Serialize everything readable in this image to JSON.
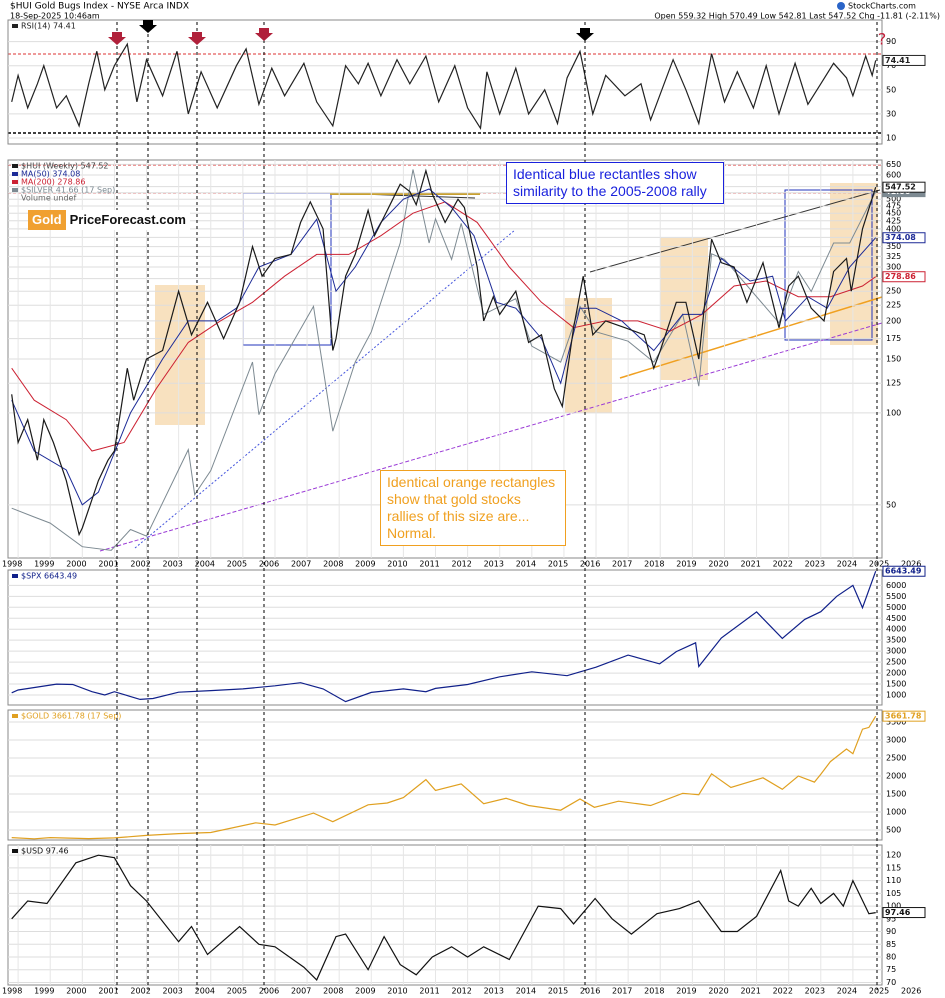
{
  "header": {
    "title": "$HUI Gold Bugs Index - NYSE Arca INDX",
    "date": "18-Sep-2025 10:46am",
    "source": "StockCharts.com",
    "quote": "Open 559.32 High 570.49 Low 542.81 Last 547.52 Chg -11.81 (-2.11%)"
  },
  "logo": {
    "left": "Gold",
    "right": "PriceForecast.com"
  },
  "chart_data": [
    {
      "type": "line",
      "annotations": [
        "?"
      ],
      "xlim": [
        1998,
        2026
      ],
      "ylim": [
        5,
        108
      ],
      "yticks": [
        10,
        30,
        50,
        70,
        90
      ],
      "grid": true,
      "series": [
        {
          "name": "RSI(14) 74.41",
          "color": "#222222",
          "x": [
            1998.8,
            1999.0,
            1999.3,
            1999.6,
            1999.8,
            2000.2,
            2000.5,
            2000.9,
            2001.2,
            2001.45,
            2001.7,
            2002.0,
            2002.4,
            2002.7,
            2003.0,
            2003.5,
            2003.95,
            2004.3,
            2004.7,
            2005.2,
            2005.8,
            2006.1,
            2006.5,
            2006.9,
            2007.3,
            2007.9,
            2008.3,
            2008.8,
            2009.2,
            2009.6,
            2009.9,
            2010.3,
            2010.8,
            2011.2,
            2011.7,
            2012.1,
            2012.6,
            2013.0,
            2013.4,
            2013.6,
            2014.0,
            2014.5,
            2014.9,
            2015.4,
            2015.8,
            2016.1,
            2016.5,
            2016.9,
            2017.3,
            2017.9,
            2018.4,
            2018.7,
            2019.4,
            2019.8,
            2020.2,
            2020.6,
            2021.0,
            2021.4,
            2021.9,
            2022.3,
            2022.7,
            2023.2,
            2023.6,
            2024.0,
            2024.4,
            2024.8,
            2025.0,
            2025.4,
            2025.6,
            2025.71
          ],
          "values": [
            40,
            62,
            35,
            55,
            70,
            35,
            45,
            20,
            55,
            82,
            50,
            70,
            88,
            40,
            75,
            45,
            82,
            30,
            65,
            35,
            70,
            84,
            38,
            68,
            45,
            72,
            40,
            20,
            70,
            55,
            72,
            45,
            75,
            55,
            78,
            40,
            70,
            35,
            18,
            65,
            30,
            68,
            30,
            50,
            22,
            60,
            82,
            30,
            62,
            45,
            55,
            25,
            75,
            50,
            22,
            80,
            40,
            65,
            35,
            70,
            30,
            72,
            38,
            55,
            72,
            60,
            45,
            78,
            62,
            74.41
          ]
        }
      ]
    },
    {
      "type": "line",
      "log_scale": true,
      "xlim": [
        1998,
        2026
      ],
      "xticks": [
        1998,
        1999,
        2000,
        2001,
        2002,
        2003,
        2004,
        2005,
        2006,
        2007,
        2008,
        2009,
        2010,
        2011,
        2012,
        2013,
        2014,
        2015,
        2016,
        2017,
        2018,
        2019,
        2020,
        2021,
        2022,
        2023,
        2024,
        2025,
        2026
      ],
      "ylim": [
        33.5,
        672
      ],
      "yticks": [
        50,
        100,
        125,
        150,
        175,
        200,
        225,
        250,
        275,
        300,
        325,
        350,
        375,
        400,
        425,
        450,
        475,
        500,
        525,
        550,
        600,
        650
      ],
      "y2lim": [
        4,
        51
      ],
      "grid": true,
      "extra_legend": [
        "Volume undef"
      ],
      "annotations": [
        "Identical blue rectantles show similarity to the 2005-2008 rally",
        "Identical orange rectangles show that gold stocks rallies of this size are... Normal."
      ],
      "series": [
        {
          "name": "$HUI (Weekly) 547.52",
          "color": "#1a1a1a",
          "x": [
            1998.8,
            1999.0,
            1999.3,
            1999.6,
            1999.8,
            2000.1,
            2000.5,
            2000.9,
            2001.0,
            2001.5,
            2001.8,
            2002.0,
            2002.4,
            2002.6,
            2003.0,
            2003.5,
            2004.0,
            2004.4,
            2004.9,
            2005.4,
            2005.9,
            2006.3,
            2006.6,
            2007.0,
            2007.5,
            2007.8,
            2008.1,
            2008.5,
            2008.8,
            2008.9,
            2009.2,
            2009.5,
            2009.9,
            2010.1,
            2010.5,
            2010.9,
            2011.2,
            2011.4,
            2011.7,
            2011.9,
            2012.3,
            2012.7,
            2012.9,
            2013.3,
            2013.5,
            2013.8,
            2014.0,
            2014.5,
            2014.9,
            2015.3,
            2015.7,
            2015.95,
            2016.3,
            2016.6,
            2016.9,
            2017.3,
            2017.9,
            2018.5,
            2018.8,
            2019.0,
            2019.5,
            2019.8,
            2020.2,
            2020.6,
            2020.9,
            2021.3,
            2021.7,
            2022.2,
            2022.7,
            2023.0,
            2023.3,
            2023.7,
            2024.1,
            2024.4,
            2024.8,
            2024.95,
            2025.3,
            2025.71
          ],
          "values": [
            115,
            80,
            95,
            70,
            95,
            80,
            60,
            40,
            42,
            60,
            70,
            75,
            140,
            110,
            150,
            160,
            250,
            180,
            230,
            175,
            230,
            350,
            280,
            320,
            330,
            420,
            490,
            400,
            160,
            175,
            280,
            330,
            460,
            380,
            460,
            560,
            530,
            480,
            620,
            520,
            420,
            500,
            470,
            300,
            200,
            240,
            210,
            250,
            170,
            180,
            120,
            105,
            190,
            280,
            180,
            200,
            190,
            180,
            140,
            160,
            230,
            230,
            150,
            370,
            310,
            300,
            230,
            310,
            190,
            260,
            280,
            220,
            200,
            290,
            320,
            250,
            400,
            547.52
          ]
        },
        {
          "name": "MA(50) 374.08",
          "color": "#1c2a96",
          "x": [
            1998.8,
            1999.5,
            2000.5,
            2001.0,
            2001.5,
            2002.5,
            2003.5,
            2004.3,
            2005.2,
            2005.8,
            2006.5,
            2007.5,
            2008.3,
            2008.9,
            2009.5,
            2010.3,
            2011.0,
            2011.8,
            2012.5,
            2013.2,
            2013.9,
            2014.5,
            2015.3,
            2015.9,
            2016.5,
            2017.0,
            2017.8,
            2018.8,
            2019.7,
            2020.3,
            2020.9,
            2021.8,
            2022.5,
            2022.9,
            2023.6,
            2024.2,
            2024.9,
            2025.71
          ],
          "values": [
            110,
            75,
            65,
            50,
            55,
            100,
            150,
            200,
            200,
            220,
            300,
            330,
            430,
            250,
            300,
            420,
            500,
            540,
            470,
            380,
            230,
            220,
            175,
            125,
            220,
            220,
            200,
            160,
            210,
            210,
            320,
            270,
            280,
            200,
            240,
            220,
            300,
            374.08
          ]
        },
        {
          "name": "MA(200) 278.86",
          "color": "#cc2233",
          "x": [
            1998.8,
            1999.5,
            2000.5,
            2001.3,
            2002.3,
            2003.3,
            2004.3,
            2005.3,
            2006.3,
            2007.3,
            2008.3,
            2009.3,
            2010.3,
            2011.3,
            2012.3,
            2013.3,
            2014.3,
            2015.3,
            2016.3,
            2017.3,
            2018.3,
            2019.3,
            2020.3,
            2021.3,
            2022.3,
            2023.3,
            2024.3,
            2025.3,
            2025.71
          ],
          "values": [
            140,
            110,
            95,
            75,
            80,
            120,
            170,
            200,
            230,
            280,
            330,
            330,
            380,
            450,
            490,
            420,
            300,
            230,
            190,
            200,
            200,
            185,
            210,
            260,
            270,
            240,
            240,
            260,
            278.86
          ]
        },
        {
          "name": "$SILVER 41.66 (17 Sep)",
          "color": "#7d8a92",
          "axis": "y2",
          "x": [
            1998.8,
            1999.5,
            2000.0,
            2001.0,
            2001.9,
            2002.5,
            2003.0,
            2004.3,
            2004.5,
            2005.0,
            2006.3,
            2006.5,
            2007.0,
            2008.2,
            2008.8,
            2009.5,
            2010.0,
            2010.9,
            2011.3,
            2011.8,
            2012.0,
            2012.5,
            2012.8,
            2013.5,
            2014.0,
            2014.5,
            2015.0,
            2015.9,
            2016.5,
            2017.0,
            2018.0,
            2018.8,
            2019.7,
            2020.2,
            2020.6,
            2021.0,
            2022.7,
            2023.3,
            2023.7,
            2024.4,
            2024.9,
            2025.71
          ],
          "values": [
            5.5,
            5.2,
            5,
            4.3,
            4.2,
            4.8,
            4.6,
            8,
            6,
            7,
            14,
            10,
            13,
            20,
            9,
            14,
            17,
            30,
            48,
            30,
            35,
            27,
            34,
            19,
            20,
            21,
            15.5,
            14,
            20,
            17,
            16,
            14,
            19,
            12,
            28,
            27,
            18,
            25,
            22,
            30,
            30,
            41.66
          ]
        }
      ]
    },
    {
      "type": "line",
      "xlim": [
        1998,
        2026
      ],
      "ylim": [
        545,
        6700
      ],
      "yticks": [
        1000,
        1500,
        2000,
        2500,
        3000,
        3500,
        4000,
        4500,
        5000,
        5500,
        6000
      ],
      "grid": true,
      "series": [
        {
          "name": "$SPX 6643.49",
          "color": "#10208a",
          "x": [
            1998.8,
            1999.0,
            2000.2,
            2000.7,
            2001.3,
            2001.7,
            2002.0,
            2002.8,
            2003.2,
            2004.0,
            2005.0,
            2006.0,
            2007.0,
            2007.8,
            2008.5,
            2009.2,
            2010.0,
            2011.0,
            2011.7,
            2012.0,
            2013.0,
            2014.0,
            2015.0,
            2016.1,
            2017.0,
            2018.0,
            2018.98,
            2019.5,
            2020.1,
            2020.2,
            2020.9,
            2022.0,
            2022.8,
            2023.5,
            2024.0,
            2024.5,
            2025.0,
            2025.3,
            2025.71
          ],
          "values": [
            1100,
            1230,
            1500,
            1480,
            1150,
            1000,
            1150,
            800,
            840,
            1130,
            1200,
            1280,
            1420,
            1560,
            1280,
            700,
            1120,
            1280,
            1150,
            1300,
            1480,
            1830,
            2060,
            1880,
            2270,
            2820,
            2420,
            2980,
            3380,
            2300,
            3600,
            4790,
            3580,
            4450,
            4800,
            5500,
            6000,
            4980,
            6643.49
          ]
        }
      ]
    },
    {
      "type": "line",
      "xlim": [
        1998,
        2026
      ],
      "ylim": [
        222,
        3833
      ],
      "yticks": [
        500,
        1000,
        1500,
        2000,
        2500,
        3000,
        3500
      ],
      "grid": true,
      "series": [
        {
          "name": "$GOLD 3661.78 (17 Sep)",
          "color": "#e0a020",
          "x": [
            1998.8,
            1999.5,
            2000.0,
            2001.2,
            2002.0,
            2003.0,
            2004.0,
            2005.0,
            2006.4,
            2007.0,
            2008.2,
            2008.8,
            2009.9,
            2010.5,
            2011.0,
            2011.7,
            2012.0,
            2012.8,
            2013.5,
            2014.2,
            2014.9,
            2015.9,
            2016.5,
            2016.95,
            2017.7,
            2018.7,
            2019.7,
            2020.2,
            2020.6,
            2021.2,
            2022.2,
            2022.8,
            2023.3,
            2023.8,
            2024.0,
            2024.3,
            2024.8,
            2025.0,
            2025.3,
            2025.5,
            2025.71
          ],
          "values": [
            290,
            255,
            290,
            260,
            280,
            350,
            400,
            430,
            700,
            640,
            970,
            730,
            1200,
            1250,
            1400,
            1900,
            1600,
            1780,
            1230,
            1380,
            1180,
            1050,
            1360,
            1130,
            1300,
            1180,
            1520,
            1480,
            2060,
            1680,
            1950,
            1630,
            2000,
            1830,
            2050,
            2400,
            2750,
            2620,
            3300,
            3350,
            3661.78
          ]
        }
      ]
    },
    {
      "type": "line",
      "xlim": [
        1998,
        2026
      ],
      "xticks": [
        1998,
        1999,
        2000,
        2001,
        2002,
        2003,
        2004,
        2005,
        2006,
        2007,
        2008,
        2009,
        2010,
        2011,
        2012,
        2013,
        2014,
        2015,
        2016,
        2017,
        2018,
        2019,
        2020,
        2021,
        2022,
        2023,
        2024,
        2025,
        2026
      ],
      "ylim": [
        69,
        124
      ],
      "yticks": [
        70,
        75,
        80,
        85,
        90,
        95,
        100,
        105,
        110,
        115,
        120
      ],
      "grid": true,
      "series": [
        {
          "name": "$USD 97.46",
          "color": "#111111",
          "x": [
            1998.8,
            1999.3,
            1999.9,
            2000.8,
            2001.5,
            2002.0,
            2002.5,
            2003.0,
            2004.0,
            2004.4,
            2004.9,
            2005.9,
            2006.5,
            2007.0,
            2007.9,
            2008.3,
            2008.9,
            2009.2,
            2009.9,
            2010.4,
            2010.9,
            2011.4,
            2011.9,
            2012.5,
            2013.0,
            2013.5,
            2014.3,
            2015.2,
            2015.9,
            2016.3,
            2016.97,
            2017.5,
            2018.1,
            2018.9,
            2019.6,
            2020.2,
            2020.9,
            2021.4,
            2022.0,
            2022.75,
            2023.0,
            2023.3,
            2023.7,
            2024.0,
            2024.4,
            2024.7,
            2025.0,
            2025.5,
            2025.71
          ],
          "values": [
            95,
            102,
            101,
            117,
            120,
            119,
            108,
            102,
            86,
            92,
            81,
            92,
            85,
            84,
            76,
            71,
            88,
            89,
            75,
            88,
            77,
            73,
            80,
            84,
            80,
            84,
            79,
            100,
            99,
            93,
            103,
            95,
            89,
            97,
            99,
            102,
            90,
            90,
            96,
            114,
            102,
            100,
            107,
            101,
            105,
            100,
            110,
            97,
            97.46
          ]
        }
      ]
    }
  ]
}
